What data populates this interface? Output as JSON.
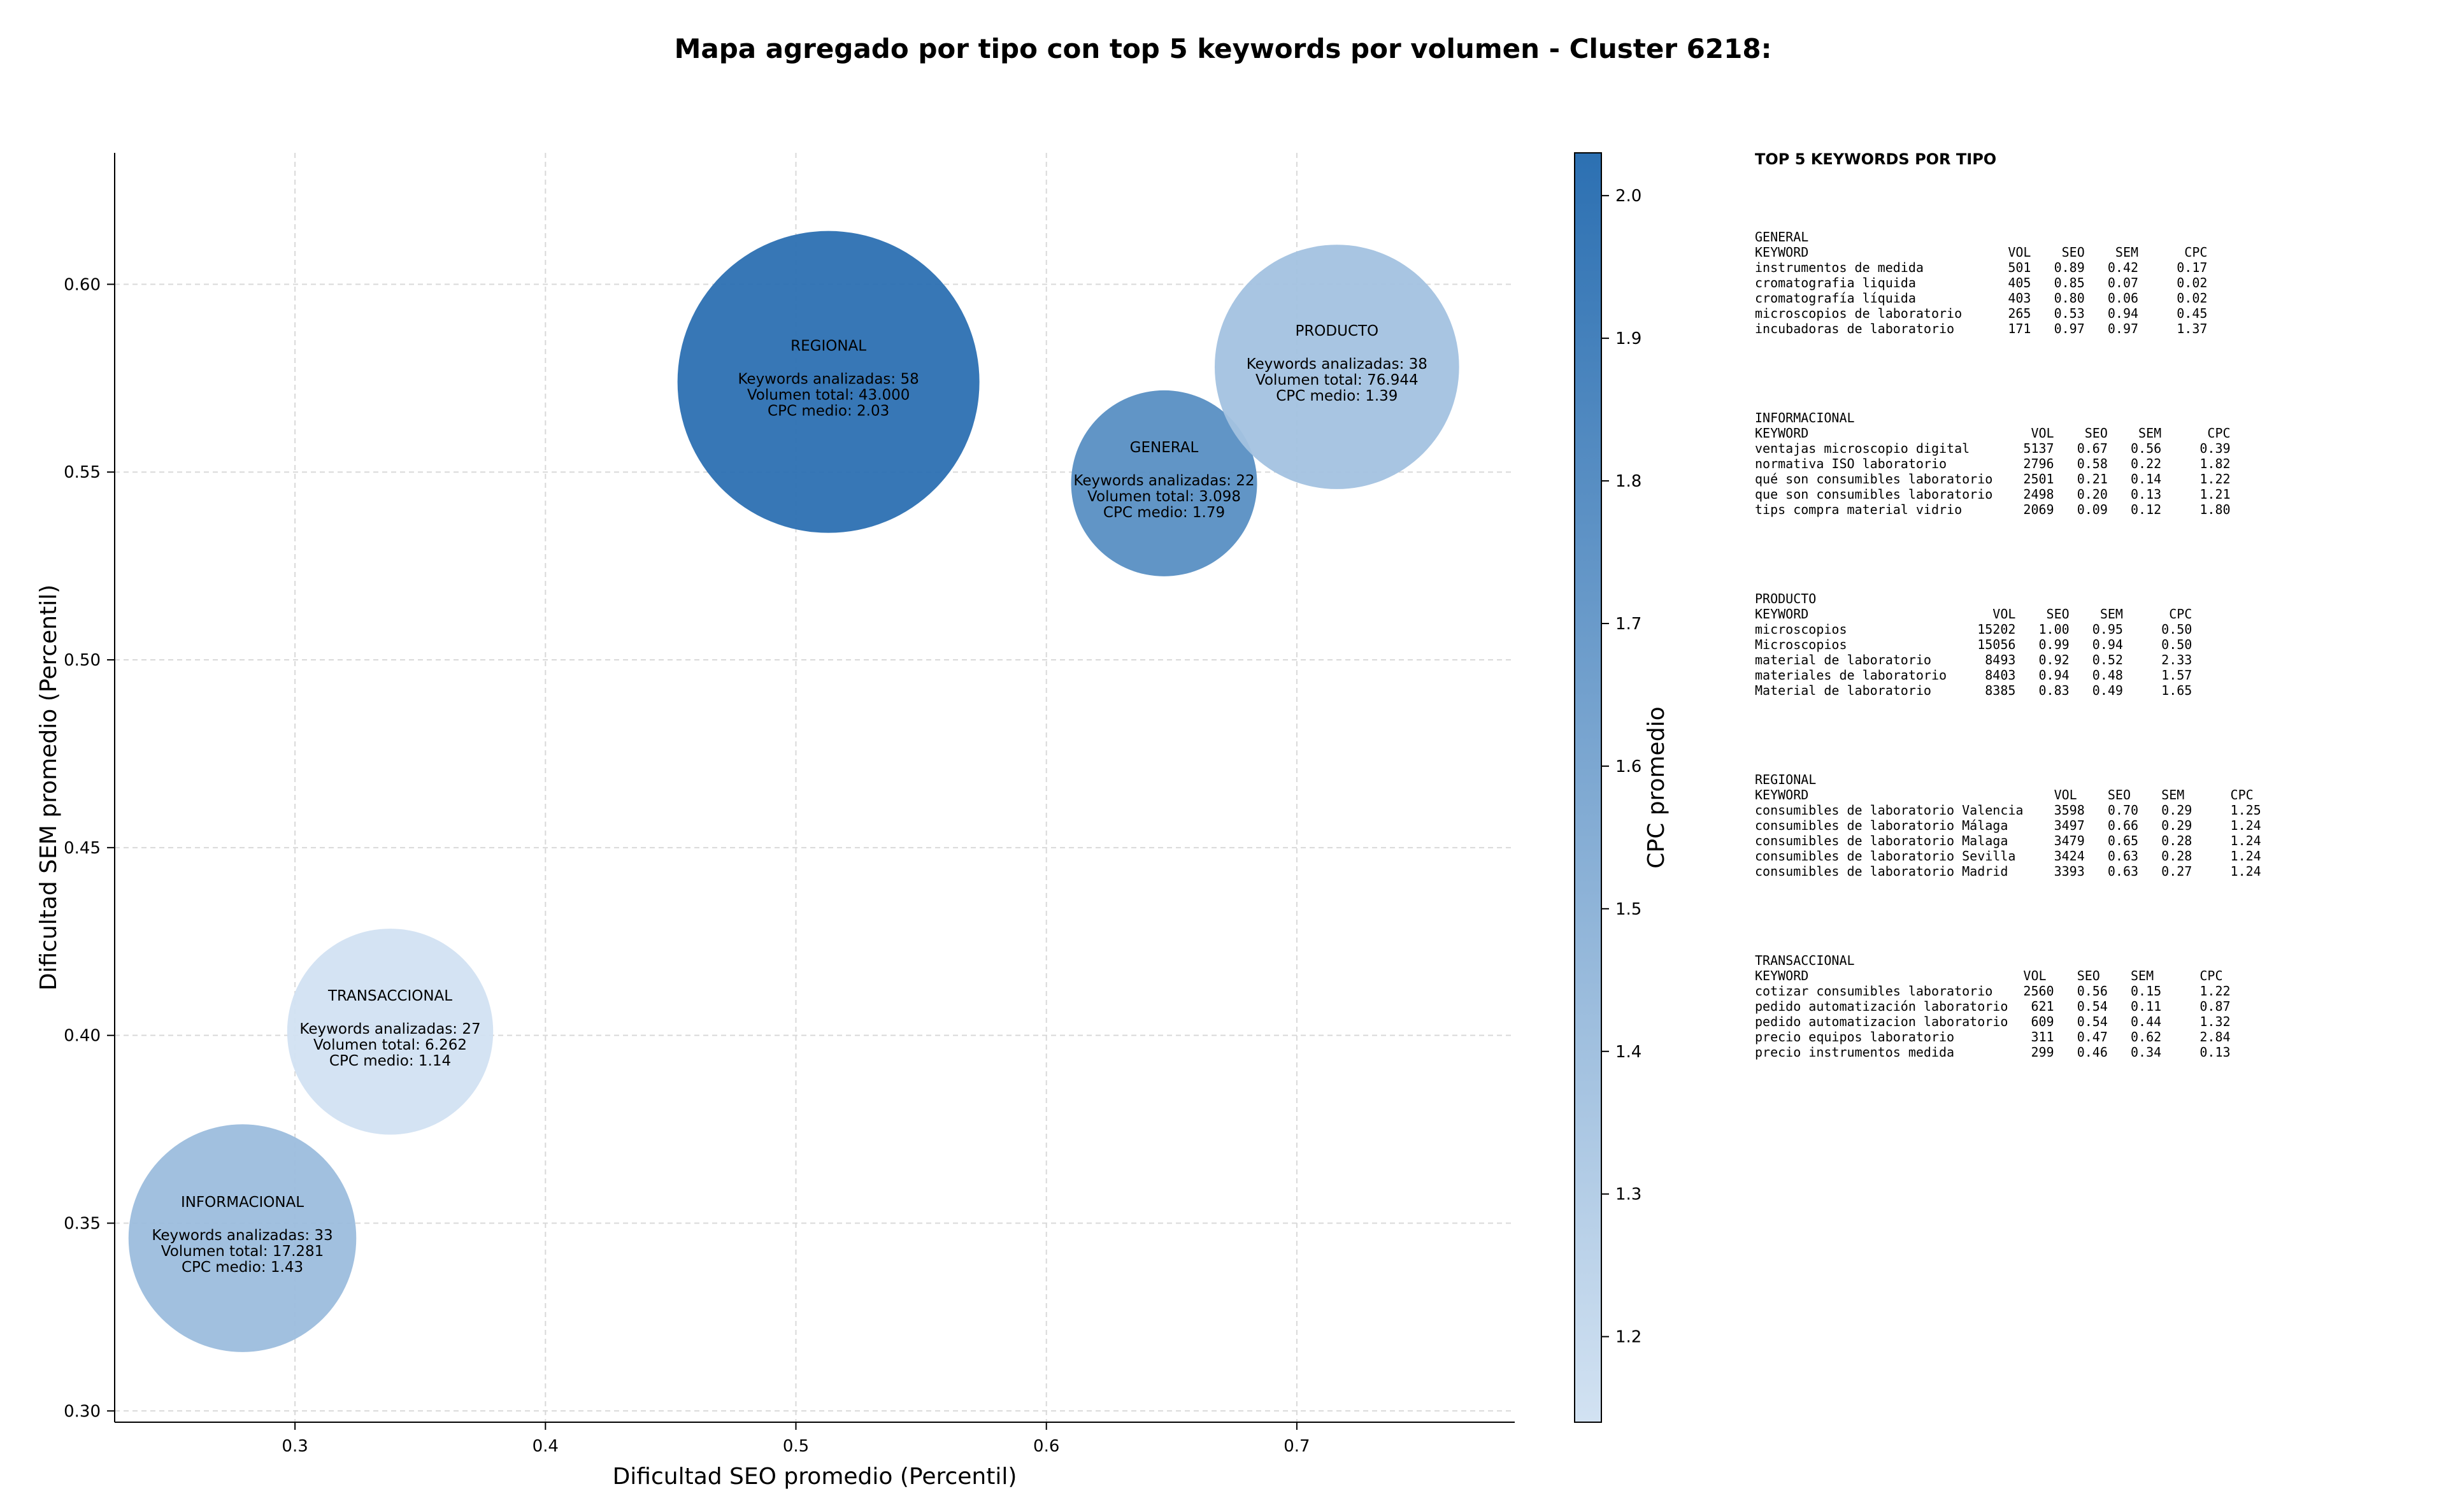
{
  "chart_data": {
    "type": "scatter",
    "title": "Mapa agregado por tipo con top 5 keywords por volumen - Cluster 6218:",
    "xlabel": "Dificultad SEO promedio (Percentil)",
    "ylabel": "Dificultad SEM promedio (Percentil)",
    "xlim": [
      0.228,
      0.787
    ],
    "ylim": [
      0.297,
      0.635
    ],
    "xticks": [
      "0.3",
      "0.4",
      "0.5",
      "0.6",
      "0.7"
    ],
    "yticks": [
      "0.30",
      "0.35",
      "0.40",
      "0.45",
      "0.50",
      "0.55",
      "0.60"
    ],
    "grid": true,
    "colorbar": {
      "label": "CPC promedio",
      "min": 1.14,
      "max": 2.03,
      "ticks": [
        "1.2",
        "1.3",
        "1.4",
        "1.5",
        "1.6",
        "1.7",
        "1.8",
        "1.9",
        "2.0"
      ],
      "color_low": "#d2e2f2",
      "color_high": "#2c70b2"
    },
    "points": [
      {
        "tipo": "REGIONAL",
        "x": 0.513,
        "y": 0.574,
        "keywords_line": "Keywords analizadas: 58",
        "volumen_line": "Volumen total: 43.000",
        "cpc_line": "CPC medio: 2.03",
        "keywords": 58,
        "volumen": 43000,
        "cpc": 2.03
      },
      {
        "tipo": "GENERAL",
        "x": 0.647,
        "y": 0.547,
        "keywords_line": "Keywords analizadas: 22",
        "volumen_line": "Volumen total: 3.098",
        "cpc_line": "CPC medio: 1.79",
        "keywords": 22,
        "volumen": 3098,
        "cpc": 1.79
      },
      {
        "tipo": "PRODUCTO",
        "x": 0.716,
        "y": 0.578,
        "keywords_line": "Keywords analizadas: 38",
        "volumen_line": "Volumen total: 76.944",
        "cpc_line": "CPC medio: 1.39",
        "keywords": 38,
        "volumen": 76944,
        "cpc": 1.39
      },
      {
        "tipo": "TRANSACCIONAL",
        "x": 0.338,
        "y": 0.401,
        "keywords_line": "Keywords analizadas: 27",
        "volumen_line": "Volumen total: 6.262",
        "cpc_line": "CPC medio: 1.14",
        "keywords": 27,
        "volumen": 6262,
        "cpc": 1.14
      },
      {
        "tipo": "INFORMACIONAL",
        "x": 0.279,
        "y": 0.346,
        "keywords_line": "Keywords analizadas: 33",
        "volumen_line": "Volumen total: 17.281",
        "cpc_line": "CPC medio: 1.43",
        "keywords": 33,
        "volumen": 17281,
        "cpc": 1.43
      }
    ]
  },
  "top_keywords": {
    "heading": "TOP 5 KEYWORDS POR TIPO",
    "groups": [
      {
        "name": "GENERAL",
        "lines": [
          "KEYWORD                          VOL    SEO    SEM      CPC",
          "instrumentos de medida           501   0.89   0.42     0.17",
          "cromatografia liquida            405   0.85   0.07     0.02",
          "cromatografía líquida            403   0.80   0.06     0.02",
          "microscopios de laboratorio      265   0.53   0.94     0.45",
          "incubadoras de laboratorio       171   0.97   0.97     1.37"
        ]
      },
      {
        "name": "INFORMACIONAL",
        "lines": [
          "KEYWORD                             VOL    SEO    SEM      CPC",
          "ventajas microscopio digital       5137   0.67   0.56     0.39",
          "normativa ISO laboratorio          2796   0.58   0.22     1.82",
          "qué son consumibles laboratorio    2501   0.21   0.14     1.22",
          "que son consumibles laboratorio    2498   0.20   0.13     1.21",
          "tips compra material vidrio        2069   0.09   0.12     1.80"
        ]
      },
      {
        "name": "PRODUCTO",
        "lines": [
          "KEYWORD                        VOL    SEO    SEM      CPC",
          "microscopios                 15202   1.00   0.95     0.50",
          "Microscopios                 15056   0.99   0.94     0.50",
          "material de laboratorio       8493   0.92   0.52     2.33",
          "materiales de laboratorio     8403   0.94   0.48     1.57",
          "Material de laboratorio       8385   0.83   0.49     1.65"
        ]
      },
      {
        "name": "REGIONAL",
        "lines": [
          "KEYWORD                                VOL    SEO    SEM      CPC",
          "consumibles de laboratorio Valencia    3598   0.70   0.29     1.25",
          "consumibles de laboratorio Málaga      3497   0.66   0.29     1.24",
          "consumibles de laboratorio Malaga      3479   0.65   0.28     1.24",
          "consumibles de laboratorio Sevilla     3424   0.63   0.28     1.24",
          "consumibles de laboratorio Madrid      3393   0.63   0.27     1.24"
        ]
      },
      {
        "name": "TRANSACCIONAL",
        "lines": [
          "KEYWORD                            VOL    SEO    SEM      CPC",
          "cotizar consumibles laboratorio    2560   0.56   0.15     1.22",
          "pedido automatización laboratorio   621   0.54   0.11     0.87",
          "pedido automatizacion laboratorio   609   0.54   0.44     1.32",
          "precio equipos laboratorio          311   0.47   0.62     2.84",
          "precio instrumentos medida          299   0.46   0.34     0.13"
        ]
      }
    ]
  }
}
